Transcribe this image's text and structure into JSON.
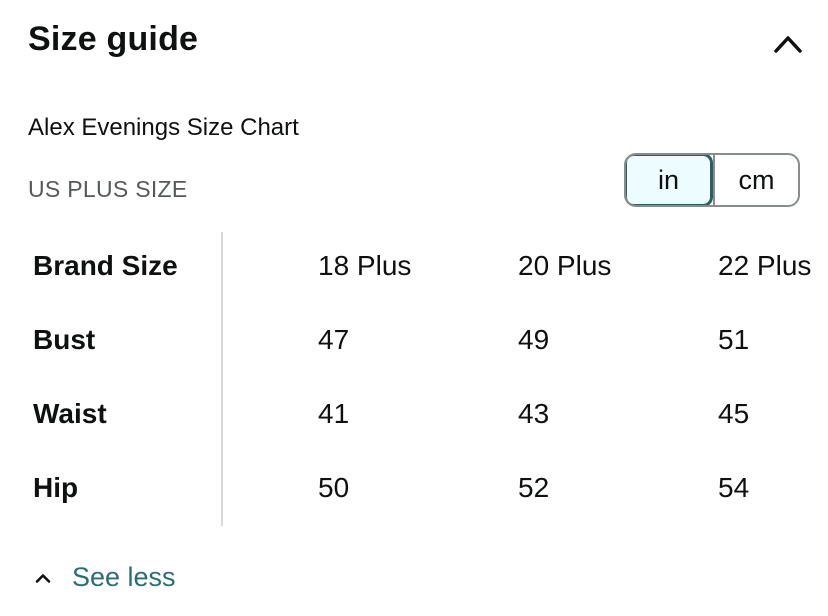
{
  "header": {
    "title": "Size guide",
    "toggle_icon": "chevron-up-icon"
  },
  "chart": {
    "name": "Alex Evenings Size Chart",
    "region": "US PLUS SIZE",
    "units": {
      "options": [
        "in",
        "cm"
      ],
      "selected": "in"
    }
  },
  "table": {
    "header_row": {
      "label": "Brand Size",
      "values": [
        "18 Plus",
        "20 Plus",
        "22 Plus"
      ]
    },
    "rows": [
      {
        "label": "Bust",
        "values": [
          "47",
          "49",
          "51"
        ]
      },
      {
        "label": "Waist",
        "values": [
          "41",
          "43",
          "45"
        ]
      },
      {
        "label": "Hip",
        "values": [
          "50",
          "52",
          "54"
        ]
      }
    ]
  },
  "footer": {
    "see_less_label": "See less",
    "icon": "chevron-up-icon"
  },
  "colors": {
    "link": "#2a6d77",
    "selected_border": "#2a5d66",
    "selected_bg": "#edfdff",
    "muted_text": "#565959"
  }
}
